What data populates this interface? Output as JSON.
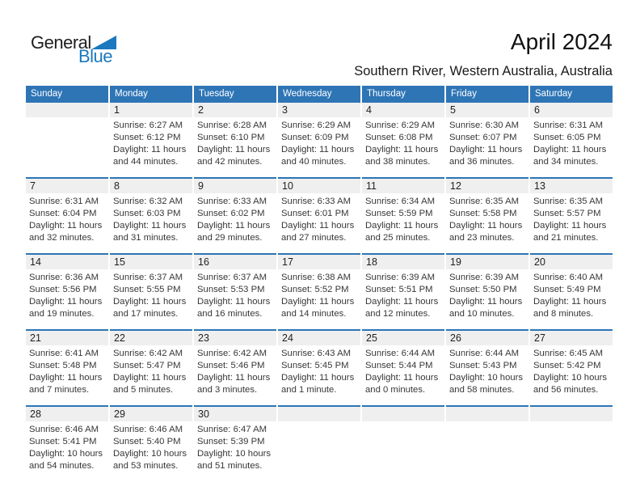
{
  "logo": {
    "general": "General",
    "blue": "Blue"
  },
  "header": {
    "title": "April 2024",
    "subtitle": "Southern River, Western Australia, Australia"
  },
  "colors": {
    "accent_blue": "#2e75b6",
    "logo_blue": "#1b78be",
    "strip_gray": "#efefef"
  },
  "weekdays": [
    "Sunday",
    "Monday",
    "Tuesday",
    "Wednesday",
    "Thursday",
    "Friday",
    "Saturday"
  ],
  "weeks": [
    [
      null,
      {
        "day": "1",
        "lines": [
          "Sunrise: 6:27 AM",
          "Sunset: 6:12 PM",
          "Daylight: 11 hours",
          "and 44 minutes."
        ]
      },
      {
        "day": "2",
        "lines": [
          "Sunrise: 6:28 AM",
          "Sunset: 6:10 PM",
          "Daylight: 11 hours",
          "and 42 minutes."
        ]
      },
      {
        "day": "3",
        "lines": [
          "Sunrise: 6:29 AM",
          "Sunset: 6:09 PM",
          "Daylight: 11 hours",
          "and 40 minutes."
        ]
      },
      {
        "day": "4",
        "lines": [
          "Sunrise: 6:29 AM",
          "Sunset: 6:08 PM",
          "Daylight: 11 hours",
          "and 38 minutes."
        ]
      },
      {
        "day": "5",
        "lines": [
          "Sunrise: 6:30 AM",
          "Sunset: 6:07 PM",
          "Daylight: 11 hours",
          "and 36 minutes."
        ]
      },
      {
        "day": "6",
        "lines": [
          "Sunrise: 6:31 AM",
          "Sunset: 6:05 PM",
          "Daylight: 11 hours",
          "and 34 minutes."
        ]
      }
    ],
    [
      {
        "day": "7",
        "lines": [
          "Sunrise: 6:31 AM",
          "Sunset: 6:04 PM",
          "Daylight: 11 hours",
          "and 32 minutes."
        ]
      },
      {
        "day": "8",
        "lines": [
          "Sunrise: 6:32 AM",
          "Sunset: 6:03 PM",
          "Daylight: 11 hours",
          "and 31 minutes."
        ]
      },
      {
        "day": "9",
        "lines": [
          "Sunrise: 6:33 AM",
          "Sunset: 6:02 PM",
          "Daylight: 11 hours",
          "and 29 minutes."
        ]
      },
      {
        "day": "10",
        "lines": [
          "Sunrise: 6:33 AM",
          "Sunset: 6:01 PM",
          "Daylight: 11 hours",
          "and 27 minutes."
        ]
      },
      {
        "day": "11",
        "lines": [
          "Sunrise: 6:34 AM",
          "Sunset: 5:59 PM",
          "Daylight: 11 hours",
          "and 25 minutes."
        ]
      },
      {
        "day": "12",
        "lines": [
          "Sunrise: 6:35 AM",
          "Sunset: 5:58 PM",
          "Daylight: 11 hours",
          "and 23 minutes."
        ]
      },
      {
        "day": "13",
        "lines": [
          "Sunrise: 6:35 AM",
          "Sunset: 5:57 PM",
          "Daylight: 11 hours",
          "and 21 minutes."
        ]
      }
    ],
    [
      {
        "day": "14",
        "lines": [
          "Sunrise: 6:36 AM",
          "Sunset: 5:56 PM",
          "Daylight: 11 hours",
          "and 19 minutes."
        ]
      },
      {
        "day": "15",
        "lines": [
          "Sunrise: 6:37 AM",
          "Sunset: 5:55 PM",
          "Daylight: 11 hours",
          "and 17 minutes."
        ]
      },
      {
        "day": "16",
        "lines": [
          "Sunrise: 6:37 AM",
          "Sunset: 5:53 PM",
          "Daylight: 11 hours",
          "and 16 minutes."
        ]
      },
      {
        "day": "17",
        "lines": [
          "Sunrise: 6:38 AM",
          "Sunset: 5:52 PM",
          "Daylight: 11 hours",
          "and 14 minutes."
        ]
      },
      {
        "day": "18",
        "lines": [
          "Sunrise: 6:39 AM",
          "Sunset: 5:51 PM",
          "Daylight: 11 hours",
          "and 12 minutes."
        ]
      },
      {
        "day": "19",
        "lines": [
          "Sunrise: 6:39 AM",
          "Sunset: 5:50 PM",
          "Daylight: 11 hours",
          "and 10 minutes."
        ]
      },
      {
        "day": "20",
        "lines": [
          "Sunrise: 6:40 AM",
          "Sunset: 5:49 PM",
          "Daylight: 11 hours",
          "and 8 minutes."
        ]
      }
    ],
    [
      {
        "day": "21",
        "lines": [
          "Sunrise: 6:41 AM",
          "Sunset: 5:48 PM",
          "Daylight: 11 hours",
          "and 7 minutes."
        ]
      },
      {
        "day": "22",
        "lines": [
          "Sunrise: 6:42 AM",
          "Sunset: 5:47 PM",
          "Daylight: 11 hours",
          "and 5 minutes."
        ]
      },
      {
        "day": "23",
        "lines": [
          "Sunrise: 6:42 AM",
          "Sunset: 5:46 PM",
          "Daylight: 11 hours",
          "and 3 minutes."
        ]
      },
      {
        "day": "24",
        "lines": [
          "Sunrise: 6:43 AM",
          "Sunset: 5:45 PM",
          "Daylight: 11 hours",
          "and 1 minute."
        ]
      },
      {
        "day": "25",
        "lines": [
          "Sunrise: 6:44 AM",
          "Sunset: 5:44 PM",
          "Daylight: 11 hours",
          "and 0 minutes."
        ]
      },
      {
        "day": "26",
        "lines": [
          "Sunrise: 6:44 AM",
          "Sunset: 5:43 PM",
          "Daylight: 10 hours",
          "and 58 minutes."
        ]
      },
      {
        "day": "27",
        "lines": [
          "Sunrise: 6:45 AM",
          "Sunset: 5:42 PM",
          "Daylight: 10 hours",
          "and 56 minutes."
        ]
      }
    ],
    [
      {
        "day": "28",
        "lines": [
          "Sunrise: 6:46 AM",
          "Sunset: 5:41 PM",
          "Daylight: 10 hours",
          "and 54 minutes."
        ]
      },
      {
        "day": "29",
        "lines": [
          "Sunrise: 6:46 AM",
          "Sunset: 5:40 PM",
          "Daylight: 10 hours",
          "and 53 minutes."
        ]
      },
      {
        "day": "30",
        "lines": [
          "Sunrise: 6:47 AM",
          "Sunset: 5:39 PM",
          "Daylight: 10 hours",
          "and 51 minutes."
        ]
      },
      null,
      null,
      null,
      null
    ]
  ]
}
